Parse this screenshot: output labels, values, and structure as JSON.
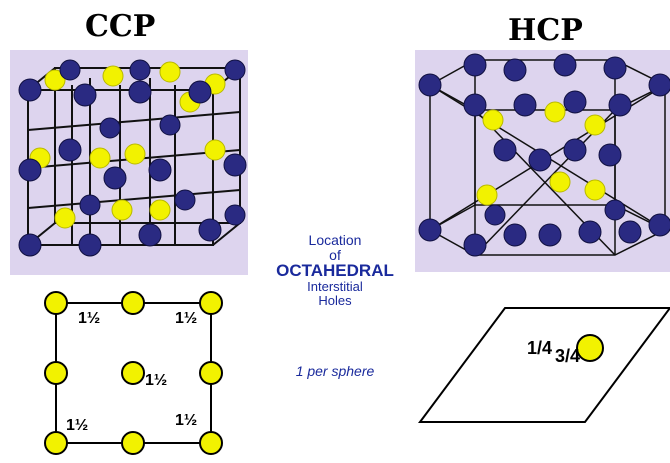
{
  "titles": {
    "left": "CCP",
    "right": "HCP"
  },
  "caption": {
    "line1": "Location",
    "line2": "of",
    "line3": "OCTAHEDRAL",
    "line4": "Interstitial",
    "line5": "Holes",
    "note": "1 per sphere"
  },
  "ccp_labels": {
    "half": "½",
    "one": "1"
  },
  "hcp_labels": {
    "quarter": "1/4",
    "three_quarter": "3/4"
  },
  "colors": {
    "sphere_blue": "#2a2a82",
    "sphere_yellow": "#f2f200",
    "panel": "#ddd4ee",
    "caption_text": "#1a2a9c"
  }
}
